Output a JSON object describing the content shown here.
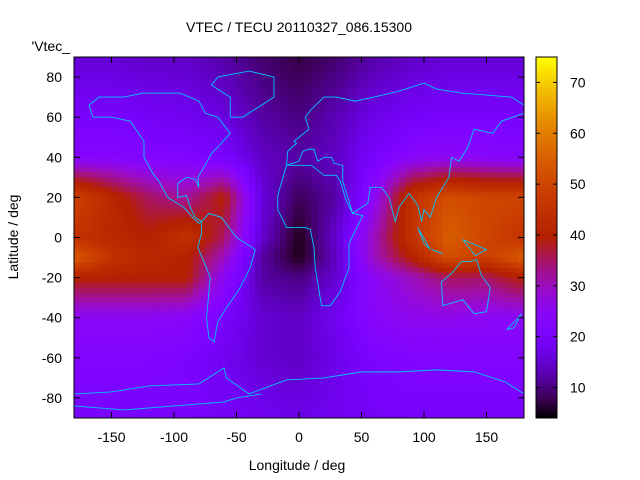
{
  "chart_data": {
    "type": "heatmap",
    "title": "VTEC / TECU 20110327_086.15300",
    "xlabel": "Longitude / deg",
    "ylabel": "Latitude / deg",
    "key_label": "'Vtec_",
    "xlim": [
      -180,
      180
    ],
    "ylim": [
      -90,
      90
    ],
    "xticks": [
      -150,
      -100,
      -50,
      0,
      50,
      100,
      150
    ],
    "yticks": [
      -80,
      -60,
      -40,
      -20,
      0,
      20,
      40,
      60,
      80
    ],
    "colorbar": {
      "range": [
        4,
        75
      ],
      "ticks": [
        10,
        20,
        30,
        40,
        50,
        60,
        70
      ],
      "palette": "black-purple-red-orange-yellow"
    },
    "grid_lons": [
      -180,
      -150,
      -120,
      -90,
      -60,
      -30,
      0,
      30,
      60,
      90,
      120,
      150,
      180
    ],
    "grid_lats": [
      90,
      60,
      40,
      20,
      0,
      -10,
      -20,
      -40,
      -60,
      -90
    ],
    "values": [
      [
        15,
        15,
        14,
        14,
        12,
        9,
        7,
        9,
        12,
        14,
        15,
        15,
        15
      ],
      [
        20,
        20,
        19,
        18,
        16,
        12,
        10,
        13,
        17,
        19,
        20,
        20,
        20
      ],
      [
        23,
        23,
        22,
        22,
        20,
        14,
        12,
        14,
        20,
        24,
        25,
        24,
        23
      ],
      [
        50,
        42,
        35,
        32,
        40,
        16,
        8,
        12,
        25,
        45,
        52,
        50,
        50
      ],
      [
        45,
        42,
        40,
        45,
        35,
        15,
        5,
        15,
        30,
        45,
        55,
        50,
        45
      ],
      [
        55,
        45,
        42,
        40,
        30,
        12,
        5,
        14,
        30,
        40,
        52,
        48,
        55
      ],
      [
        40,
        40,
        40,
        40,
        25,
        12,
        10,
        15,
        25,
        30,
        35,
        35,
        40
      ],
      [
        25,
        25,
        25,
        24,
        20,
        15,
        14,
        18,
        24,
        26,
        26,
        25,
        25
      ],
      [
        22,
        22,
        22,
        21,
        18,
        15,
        14,
        17,
        21,
        22,
        22,
        22,
        22
      ],
      [
        20,
        20,
        20,
        20,
        19,
        18,
        17,
        18,
        19,
        20,
        20,
        20,
        20
      ]
    ]
  }
}
